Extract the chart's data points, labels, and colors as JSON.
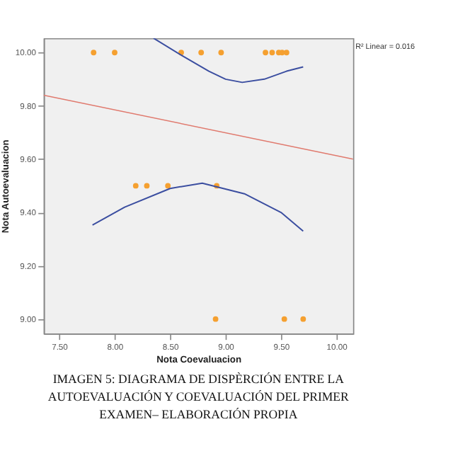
{
  "chart_data": {
    "type": "scatter",
    "title": "IMAGEN 5: DIAGRAMA DE DISPÈRCIÓN  ENTRE LA AUTOEVALUACIÓN Y COEVALUACIÓN DEL PRIMER EXAMEN– ELABORACIÓN PROPIA",
    "xlabel": "Nota Coevaluacion",
    "ylabel": "Nota Autoevaluacion",
    "annotations": [
      "R² Linear = 0.016"
    ],
    "xlim": [
      7.36,
      10.15
    ],
    "ylim": [
      8.946,
      10.054
    ],
    "xticks": [
      {
        "value": 7.5,
        "label": "7.50"
      },
      {
        "value": 8,
        "label": "8.00"
      },
      {
        "value": 8.5,
        "label": "8.50"
      },
      {
        "value": 9,
        "label": "9.00"
      },
      {
        "value": 9.5,
        "label": "9.50"
      },
      {
        "value": 10,
        "label": "10.00"
      }
    ],
    "yticks": [
      {
        "value": 9,
        "label": "9.00"
      },
      {
        "value": 9.2,
        "label": "9.20"
      },
      {
        "value": 9.4,
        "label": "9.40"
      },
      {
        "value": 9.6,
        "label": "9.60"
      },
      {
        "value": 9.8,
        "label": "9.80"
      },
      {
        "value": 10,
        "label": "10.00"
      }
    ],
    "grid": false,
    "series": [
      {
        "marker": "circle",
        "color": "#f5a030",
        "x": [
          7.81,
          8.0,
          8.6,
          8.78,
          8.96,
          9.36,
          9.42,
          9.48,
          9.51,
          9.55,
          8.19,
          8.29,
          8.48,
          8.92,
          8.91,
          9.53,
          9.7
        ],
        "values": [
          10,
          10,
          10,
          10,
          10,
          10,
          10,
          10,
          10,
          10,
          9.5,
          9.5,
          9.5,
          9.5,
          9,
          9,
          9
        ]
      },
      {
        "type": "line",
        "marker": "none",
        "line_style": "solid",
        "color": "#e07a6e",
        "x": [
          7.36,
          10.15
        ],
        "values": [
          9.84,
          9.6
        ]
      },
      {
        "type": "line",
        "marker": "none",
        "line_style": "solid",
        "color": "#3b4ea0",
        "x": [
          8.35,
          8.6,
          8.85,
          9.0,
          9.15,
          9.35,
          9.55,
          9.7
        ],
        "values": [
          10.054,
          9.99,
          9.93,
          9.9,
          9.888,
          9.9,
          9.93,
          9.946
        ]
      },
      {
        "type": "line",
        "marker": "none",
        "line_style": "solid",
        "color": "#3b4ea0",
        "x": [
          7.8,
          8.09,
          8.5,
          8.79,
          9.17,
          9.5,
          9.7
        ],
        "values": [
          9.353,
          9.42,
          9.49,
          9.51,
          9.47,
          9.4,
          9.33
        ]
      }
    ]
  }
}
